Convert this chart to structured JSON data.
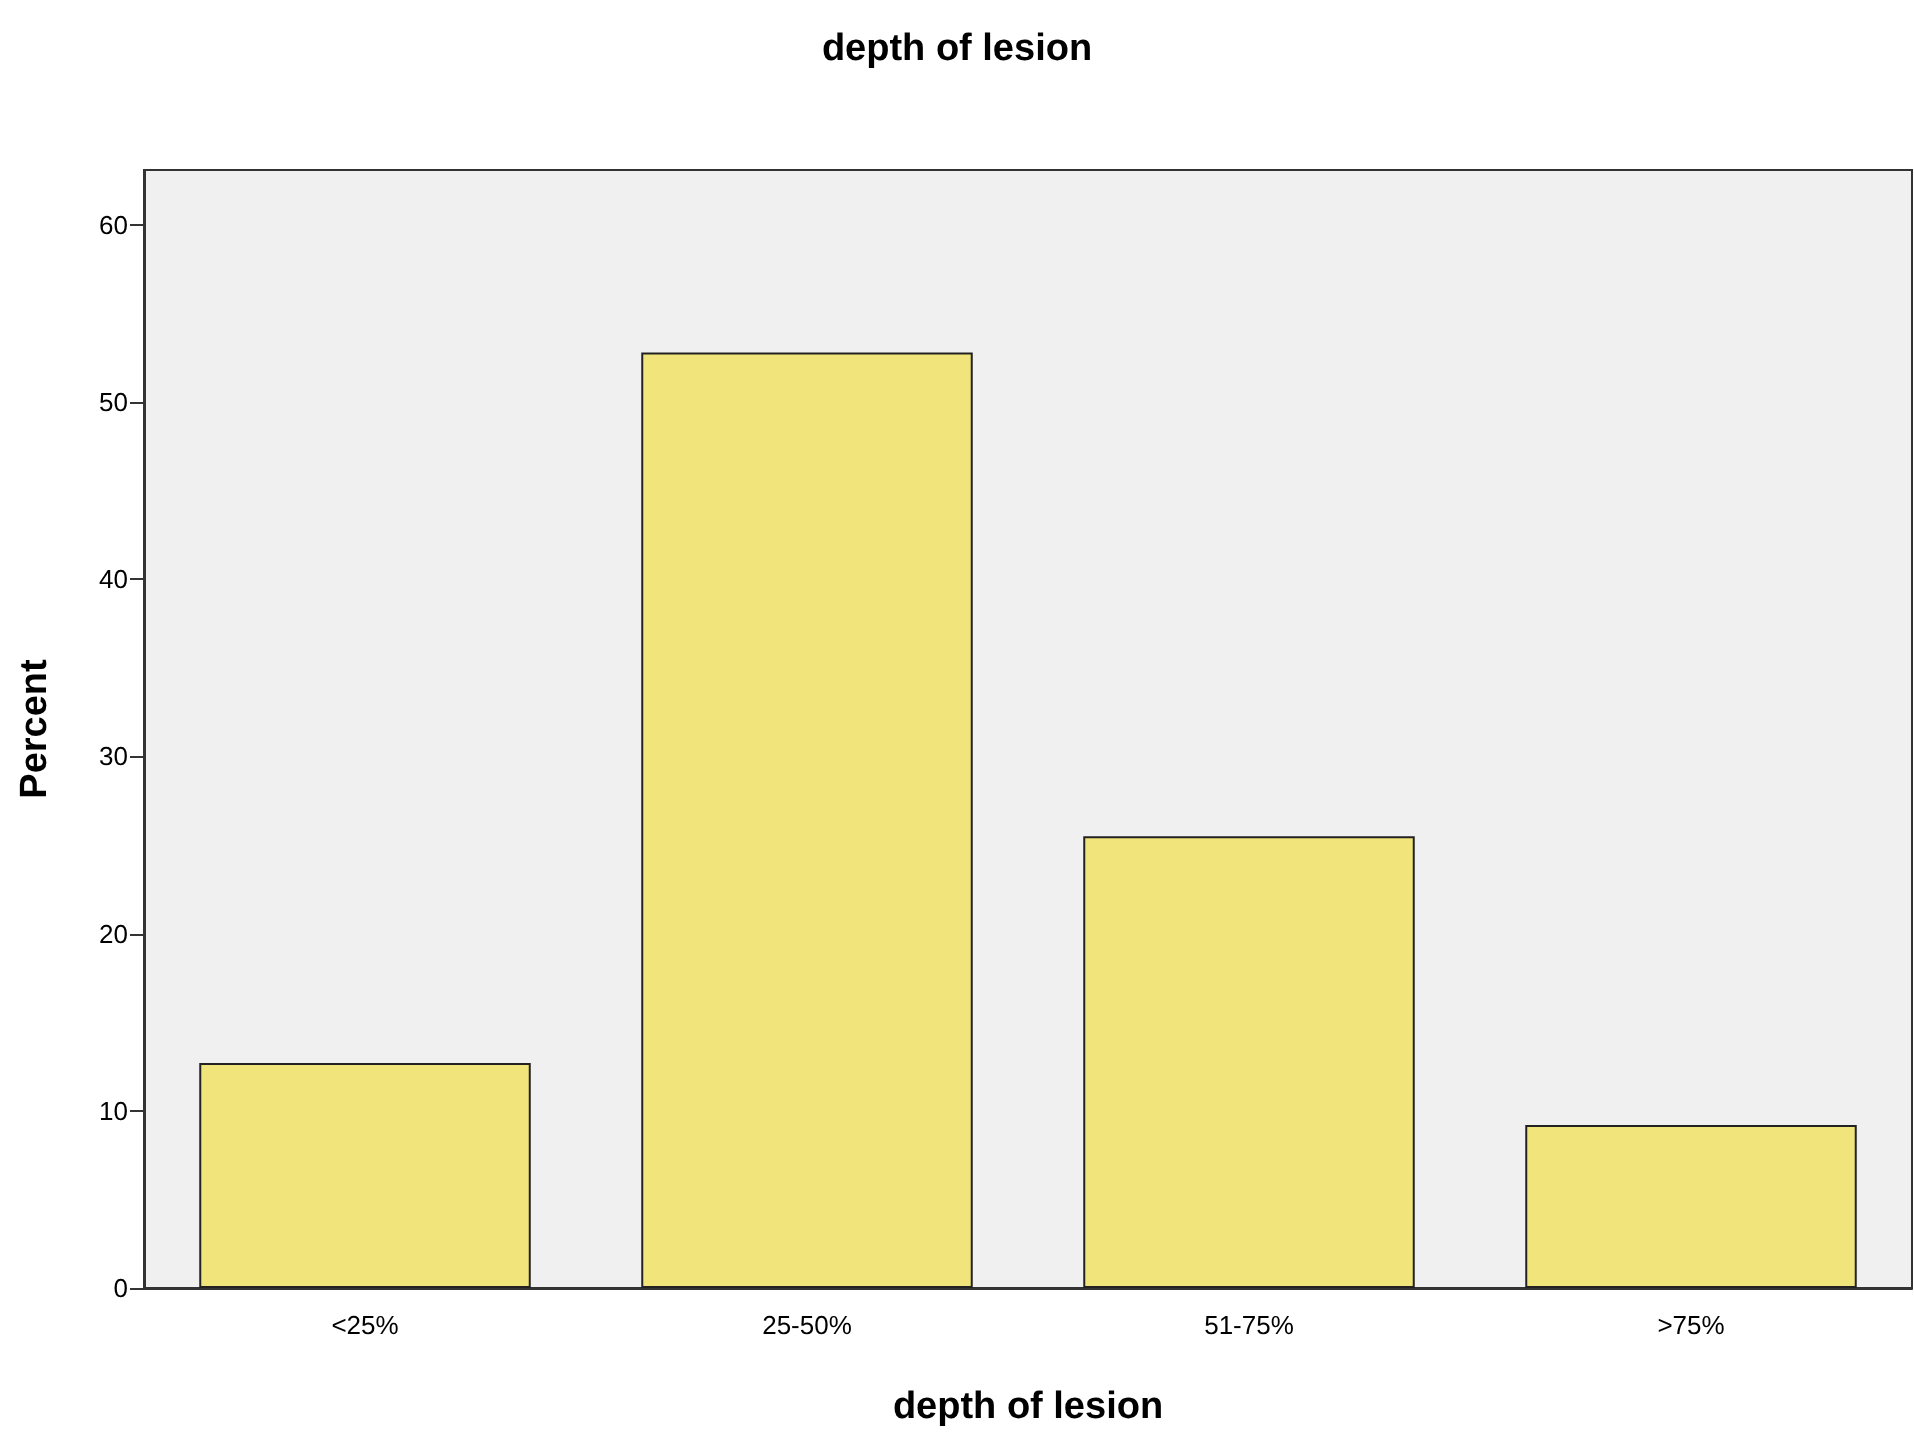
{
  "chart_data": {
    "type": "bar",
    "title": "depth of lesion",
    "xlabel": "depth of lesion",
    "ylabel": "Percent",
    "categories": [
      "<25%",
      "25-50%",
      "51-75%",
      ">75%"
    ],
    "values": [
      12.7,
      52.8,
      25.5,
      9.2
    ],
    "color": "#f0e47a",
    "ylim": [
      0,
      63.1
    ],
    "yticks": [
      0,
      10,
      20,
      30,
      40,
      50,
      60
    ],
    "grid": false
  }
}
